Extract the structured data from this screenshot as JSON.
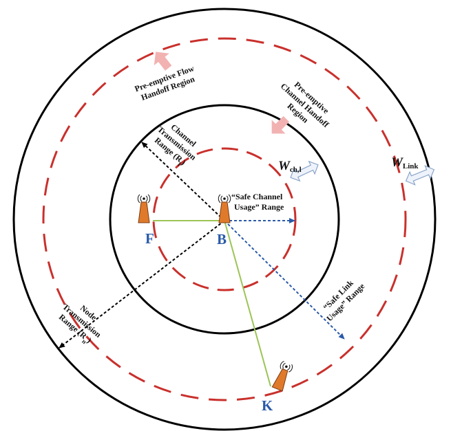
{
  "colors": {
    "circle": "#000000",
    "dashed_ring": "#c9302c",
    "green_line": "#9cc455",
    "blue_arrow": "#2a5aa8",
    "black_arrow": "#000000",
    "pink_arrow": "#f2b2b2",
    "gap_arrow_fill": "#eef3fb",
    "gap_arrow_stroke": "#8aa3c8",
    "node_body": "#e07a2b",
    "node_letter": "#2a5aa8"
  },
  "icons": {
    "node": "antenna-node-icon",
    "flow_handoff": "pink-arrow-icon",
    "channel_handoff": "pink-arrow-icon",
    "gap": "double-arrow-icon"
  },
  "labels": {
    "flow_handoff": [
      "Pre-emptive Flow",
      "Handoff Region"
    ],
    "channel_handoff": [
      "Pre-emptive",
      "Channel Handoff",
      "Region"
    ],
    "channel_tx": [
      "Channel",
      "Transmission",
      "Range (R"
    ],
    "channel_tx_sub": "l",
    "node_tx": [
      "Node",
      "Transmission",
      "Range (R"
    ],
    "node_tx_sub": "n",
    "range_close": ")",
    "safe_channel": [
      "“Safe Channel",
      "Usage” Range"
    ],
    "safe_link": [
      "“Safe Link",
      "Usage” Range"
    ],
    "w_ch": "W",
    "w_ch_sub": "ch,l",
    "w_link": "W",
    "w_link_sub": "Link"
  },
  "nodes": {
    "B": "B",
    "F": "F",
    "K": "K"
  }
}
